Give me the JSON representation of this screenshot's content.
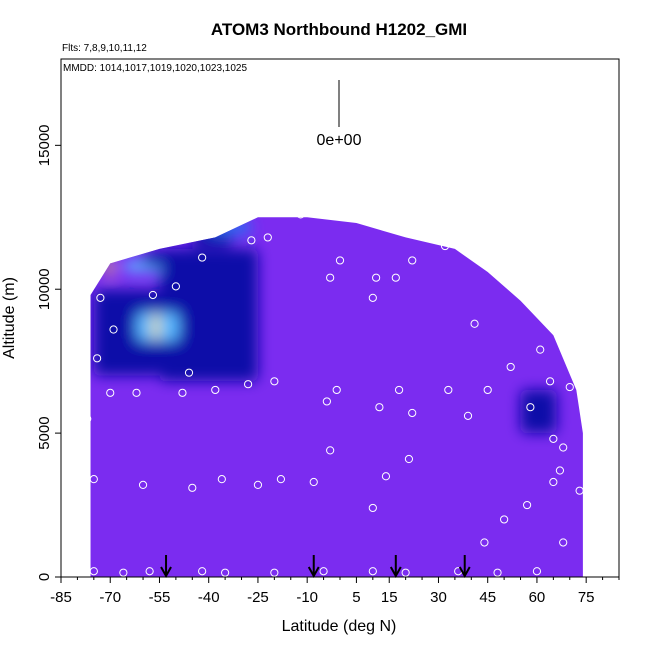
{
  "chart_data": {
    "type": "heatmap",
    "title": "ATOM3 Northbound H1202_GMI",
    "flights_label": "Flts: 7,8,9,10,11,12",
    "dates_label": "MMDD: 1014,1017,1019,1020,1023,1025",
    "xlabel": "Latitude (deg N)",
    "ylabel": "Altitude (m)",
    "xlim": [
      -85,
      85
    ],
    "ylim": [
      0,
      18000
    ],
    "x_ticks": [
      -85,
      -70,
      -55,
      -40,
      -25,
      -10,
      5,
      15,
      30,
      45,
      60,
      75
    ],
    "y_ticks": [
      0,
      5000,
      10000,
      15000
    ],
    "scale_reference_label": "0e+00",
    "colors": {
      "background": "#7b2cf0",
      "dark": "#0a0aa8",
      "mid": "#2a6cf0",
      "light": "#5ab8ff",
      "highlight": "#ffe24a"
    },
    "curtain_top": [
      {
        "lat": -76,
        "alt": 9800
      },
      {
        "lat": -70,
        "alt": 10900
      },
      {
        "lat": -55,
        "alt": 11400
      },
      {
        "lat": -38,
        "alt": 11800
      },
      {
        "lat": -25,
        "alt": 12500
      },
      {
        "lat": -10,
        "alt": 12500
      },
      {
        "lat": 5,
        "alt": 12300
      },
      {
        "lat": 20,
        "alt": 11800
      },
      {
        "lat": 35,
        "alt": 11400
      },
      {
        "lat": 45,
        "alt": 10600
      },
      {
        "lat": 55,
        "alt": 9600
      },
      {
        "lat": 65,
        "alt": 8400
      },
      {
        "lat": 72,
        "alt": 6500
      },
      {
        "lat": 74,
        "alt": 5000
      }
    ],
    "curtain_bottom_lat": [
      -76,
      74
    ],
    "features": [
      {
        "lat1": -55,
        "lat2": -25,
        "alt1": 6800,
        "alt2": 11400,
        "level": "dark"
      },
      {
        "lat1": -75,
        "lat2": -55,
        "alt1": 7000,
        "alt2": 10000,
        "level": "dark"
      },
      {
        "lat1": -45,
        "lat2": -33,
        "alt1": 11500,
        "alt2": 12100,
        "level": "dark"
      },
      {
        "lat1": -40,
        "lat2": -27,
        "alt1": 11900,
        "alt2": 12400,
        "level": "mid"
      },
      {
        "lat1": -62,
        "lat2": -49,
        "alt1": 8200,
        "alt2": 9200,
        "level": "light"
      },
      {
        "lat1": -66,
        "lat2": -54,
        "alt1": 10600,
        "alt2": 11000,
        "level": "light"
      },
      {
        "lat1": -60,
        "lat2": -40,
        "alt1": 10800,
        "alt2": 11300,
        "level": "dark"
      },
      {
        "lat1": 55,
        "lat2": 66,
        "alt1": 5000,
        "alt2": 6500,
        "level": "dark"
      }
    ],
    "samples": [
      {
        "lat": -75,
        "alt": 200
      },
      {
        "lat": -66,
        "alt": 150
      },
      {
        "lat": -58,
        "alt": 200
      },
      {
        "lat": -42,
        "alt": 200
      },
      {
        "lat": -35,
        "alt": 150
      },
      {
        "lat": -20,
        "alt": 150
      },
      {
        "lat": -5,
        "alt": 200
      },
      {
        "lat": 10,
        "alt": 200
      },
      {
        "lat": 20,
        "alt": 150
      },
      {
        "lat": 36,
        "alt": 200
      },
      {
        "lat": 48,
        "alt": 150
      },
      {
        "lat": 60,
        "alt": 200
      },
      {
        "lat": 73,
        "alt": 3000
      },
      {
        "lat": 68,
        "alt": 4500
      },
      {
        "lat": 65,
        "alt": 4800
      },
      {
        "lat": 58,
        "alt": 5900
      },
      {
        "lat": 64,
        "alt": 6800
      },
      {
        "lat": 70,
        "alt": 6600
      },
      {
        "lat": 61,
        "alt": 7900
      },
      {
        "lat": 52,
        "alt": 7300
      },
      {
        "lat": 41,
        "alt": 8800
      },
      {
        "lat": 45,
        "alt": 6500
      },
      {
        "lat": 39,
        "alt": 5600
      },
      {
        "lat": 33,
        "alt": 6500
      },
      {
        "lat": 22,
        "alt": 5700
      },
      {
        "lat": 18,
        "alt": 6500
      },
      {
        "lat": 12,
        "alt": 5900
      },
      {
        "lat": -4,
        "alt": 6100
      },
      {
        "lat": -1,
        "alt": 6500
      },
      {
        "lat": -28,
        "alt": 6700
      },
      {
        "lat": -20,
        "alt": 6800
      },
      {
        "lat": -38,
        "alt": 6500
      },
      {
        "lat": -46,
        "alt": 7100
      },
      {
        "lat": -48,
        "alt": 6400
      },
      {
        "lat": -62,
        "alt": 6400
      },
      {
        "lat": -74,
        "alt": 7600
      },
      {
        "lat": -77,
        "alt": 5500
      },
      {
        "lat": -75,
        "alt": 3400
      },
      {
        "lat": -60,
        "alt": 3200
      },
      {
        "lat": -45,
        "alt": 3100
      },
      {
        "lat": -36,
        "alt": 3400
      },
      {
        "lat": -25,
        "alt": 3200
      },
      {
        "lat": -18,
        "alt": 3400
      },
      {
        "lat": -8,
        "alt": 3300
      },
      {
        "lat": -3,
        "alt": 4400
      },
      {
        "lat": 14,
        "alt": 3500
      },
      {
        "lat": 21,
        "alt": 4100
      },
      {
        "lat": 10,
        "alt": 2400
      },
      {
        "lat": 50,
        "alt": 2000
      },
      {
        "lat": 57,
        "alt": 2500
      },
      {
        "lat": 65,
        "alt": 3300
      },
      {
        "lat": 67,
        "alt": 3700
      },
      {
        "lat": 68,
        "alt": 1200
      },
      {
        "lat": 44,
        "alt": 1200
      },
      {
        "lat": -70,
        "alt": 6400
      },
      {
        "lat": -69,
        "alt": 8600
      },
      {
        "lat": -73,
        "alt": 9700
      },
      {
        "lat": -57,
        "alt": 9800
      },
      {
        "lat": -50,
        "alt": 10100
      },
      {
        "lat": -42,
        "alt": 11100
      },
      {
        "lat": -22,
        "alt": 11800
      },
      {
        "lat": -27,
        "alt": 11700
      },
      {
        "lat": -12,
        "alt": 12600
      },
      {
        "lat": 0,
        "alt": 11000
      },
      {
        "lat": -3,
        "alt": 10400
      },
      {
        "lat": 11,
        "alt": 10400
      },
      {
        "lat": 17,
        "alt": 10400
      },
      {
        "lat": 22,
        "alt": 11000
      },
      {
        "lat": 32,
        "alt": 11500
      },
      {
        "lat": 10,
        "alt": 9700
      }
    ],
    "flight_markers_lat": [
      -53,
      -8,
      17,
      38
    ]
  }
}
